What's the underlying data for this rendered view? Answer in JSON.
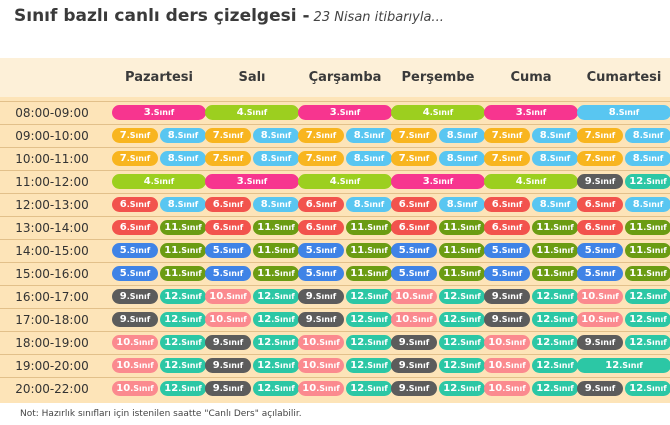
{
  "title": "Sınıf bazlı canlı ders çizelgesi -",
  "subtitle": "23 Nisan itibarıyla...",
  "days": [
    "Pazartesi",
    "Salı",
    "Çarşamba",
    "Perşembe",
    "Cuma",
    "Cumartesi"
  ],
  "note": "Not: Hazırlık sınıfları için istenilen saatte \"Canlı Ders\" açılabilir.",
  "colors": {
    "3": "#f7358f",
    "4": "#9ccf1f",
    "5": "#3f83e6",
    "6": "#f2534d",
    "7": "#f8b51f",
    "8": "#59c6f1",
    "9": "#5c5c5c",
    "10": "#fb8a8f",
    "11": "#6b9c13",
    "12": "#2cc7a5"
  },
  "rows": [
    {
      "time": "08:00-09:00",
      "cells": [
        [
          3
        ],
        [
          4
        ],
        [
          3
        ],
        [
          4
        ],
        [
          3
        ],
        [
          8
        ]
      ]
    },
    {
      "time": "09:00-10:00",
      "cells": [
        [
          7,
          8
        ],
        [
          7,
          8
        ],
        [
          7,
          8
        ],
        [
          7,
          8
        ],
        [
          7,
          8
        ],
        [
          7,
          8
        ]
      ]
    },
    {
      "time": "10:00-11:00",
      "cells": [
        [
          7,
          8
        ],
        [
          7,
          8
        ],
        [
          7,
          8
        ],
        [
          7,
          8
        ],
        [
          7,
          8
        ],
        [
          7,
          8
        ]
      ]
    },
    {
      "time": "11:00-12:00",
      "cells": [
        [
          4
        ],
        [
          3
        ],
        [
          4
        ],
        [
          3
        ],
        [
          4
        ],
        [
          9,
          12
        ]
      ]
    },
    {
      "time": "12:00-13:00",
      "cells": [
        [
          6,
          8
        ],
        [
          6,
          8
        ],
        [
          6,
          8
        ],
        [
          6,
          8
        ],
        [
          6,
          8
        ],
        [
          6,
          8
        ]
      ]
    },
    {
      "time": "13:00-14:00",
      "cells": [
        [
          6,
          11
        ],
        [
          6,
          11
        ],
        [
          6,
          11
        ],
        [
          6,
          11
        ],
        [
          6,
          11
        ],
        [
          6,
          11
        ]
      ]
    },
    {
      "time": "14:00-15:00",
      "cells": [
        [
          5,
          11
        ],
        [
          5,
          11
        ],
        [
          5,
          11
        ],
        [
          5,
          11
        ],
        [
          5,
          11
        ],
        [
          5,
          11
        ]
      ]
    },
    {
      "time": "15:00-16:00",
      "cells": [
        [
          5,
          11
        ],
        [
          5,
          11
        ],
        [
          5,
          11
        ],
        [
          5,
          11
        ],
        [
          5,
          11
        ],
        [
          5,
          11
        ]
      ]
    },
    {
      "time": "16:00-17:00",
      "cells": [
        [
          9,
          12
        ],
        [
          10,
          12
        ],
        [
          9,
          12
        ],
        [
          10,
          12
        ],
        [
          9,
          12
        ],
        [
          10,
          12
        ]
      ]
    },
    {
      "time": "17:00-18:00",
      "cells": [
        [
          9,
          12
        ],
        [
          10,
          12
        ],
        [
          9,
          12
        ],
        [
          10,
          12
        ],
        [
          9,
          12
        ],
        [
          10,
          12
        ]
      ]
    },
    {
      "time": "18:00-19:00",
      "cells": [
        [
          10,
          12
        ],
        [
          9,
          12
        ],
        [
          10,
          12
        ],
        [
          9,
          12
        ],
        [
          10,
          12
        ],
        [
          9,
          12
        ]
      ]
    },
    {
      "time": "19:00-20:00",
      "cells": [
        [
          10,
          12
        ],
        [
          9,
          12
        ],
        [
          10,
          12
        ],
        [
          9,
          12
        ],
        [
          10,
          12
        ],
        [
          12
        ]
      ]
    },
    {
      "time": "20:00-22:00",
      "cells": [
        [
          10,
          12
        ],
        [
          9,
          12
        ],
        [
          10,
          12
        ],
        [
          9,
          12
        ],
        [
          10,
          12
        ],
        [
          9,
          12
        ]
      ]
    }
  ]
}
